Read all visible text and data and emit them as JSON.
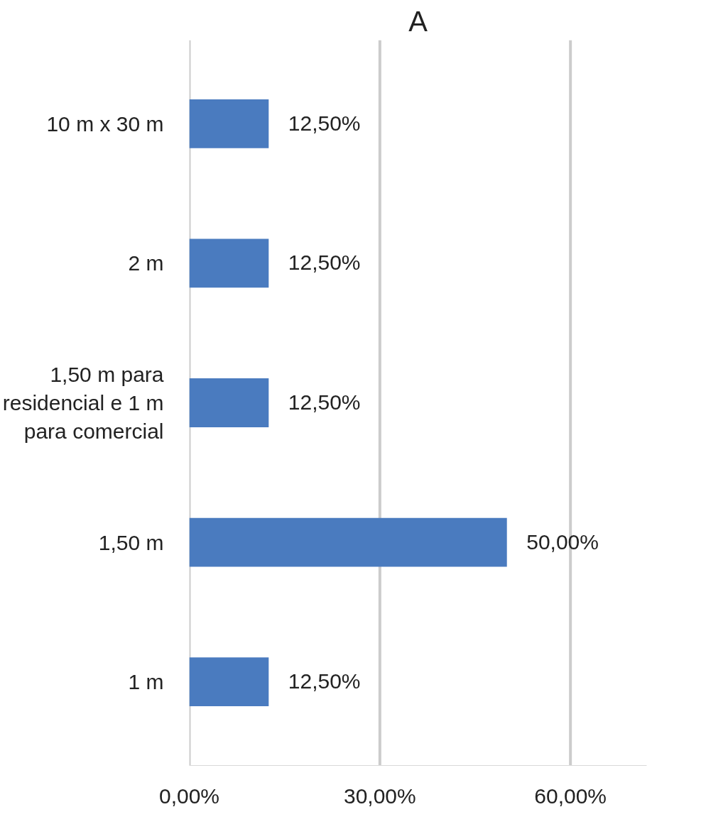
{
  "chart_data": {
    "type": "bar",
    "title": "A",
    "orientation": "horizontal",
    "categories": [
      "10 m x 30 m",
      "2 m",
      "1,50 m para residencial e 1 m para comercial",
      "1,50 m",
      "1 m"
    ],
    "values": [
      12.5,
      12.5,
      12.5,
      50,
      12.5
    ],
    "color": "#4a7bbf",
    "value_labels": [
      "12,50%",
      "12,50%",
      "12,50%",
      "50,00%",
      "12,50%"
    ],
    "xlim": [
      0,
      72
    ],
    "xticks": [
      {
        "value": 0,
        "label": "0,00%"
      },
      {
        "value": 30,
        "label": "30,00%"
      },
      {
        "value": 60,
        "label": "60,00%"
      }
    ],
    "grid": "x"
  }
}
